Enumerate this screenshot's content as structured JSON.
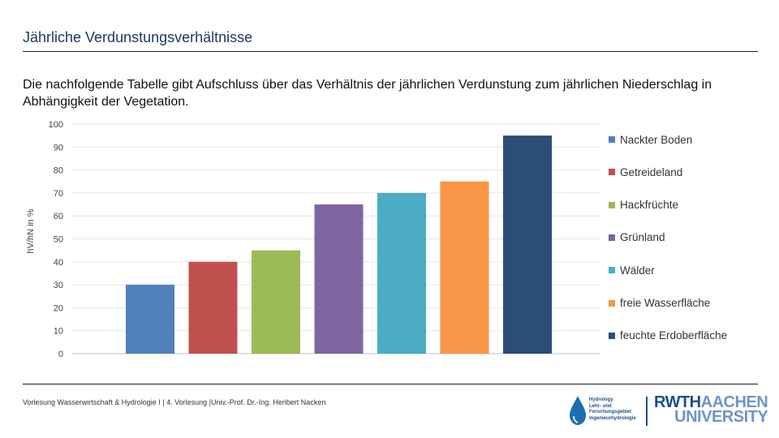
{
  "slide": {
    "title": "Jährliche Verdunstungsverhältnisse",
    "intro": "Die nachfolgende Tabelle gibt Aufschluss über das Verhältnis der jährlichen Verdunstung zum jährlichen Niederschlag in Abhängigkeit der Vegetation.",
    "footer": "Vorlesung Wasserwirtschaft & Hydrologie I | 4. Vorlesung |Univ.-Prof. Dr.-Ing. Heribert Nacken"
  },
  "logos": {
    "hydrology_lines": [
      "Hydrology",
      "Lehr- und",
      "Forschungsgebiet",
      "Ingenieurhydrologie"
    ],
    "rwth_bold": "RWTH",
    "rwth_light": "AACHEN",
    "rwth_university": "UNIVERSITY"
  },
  "chart_data": {
    "type": "bar",
    "title": "",
    "xlabel": "",
    "ylabel": "hV/hN in %",
    "ylim": [
      0,
      100
    ],
    "yticks": [
      "0",
      "10",
      "20",
      "30",
      "40",
      "50",
      "60",
      "70",
      "80",
      "90",
      "100"
    ],
    "grid": true,
    "legend_position": "right",
    "series": [
      {
        "name": "Nackter Boden",
        "value": 30,
        "color": "#4f81bd"
      },
      {
        "name": "Getreideland",
        "value": 40,
        "color": "#c0504d"
      },
      {
        "name": "Hackfrüchte",
        "value": 45,
        "color": "#9bbb59"
      },
      {
        "name": "Grünland",
        "value": 65,
        "color": "#8064a2"
      },
      {
        "name": "Wälder",
        "value": 70,
        "color": "#4bacc6"
      },
      {
        "name": "freie Wasserfläche",
        "value": 75,
        "color": "#f79646"
      },
      {
        "name": "feuchte Erdoberfläche",
        "value": 95,
        "color": "#2c4d75"
      }
    ]
  }
}
